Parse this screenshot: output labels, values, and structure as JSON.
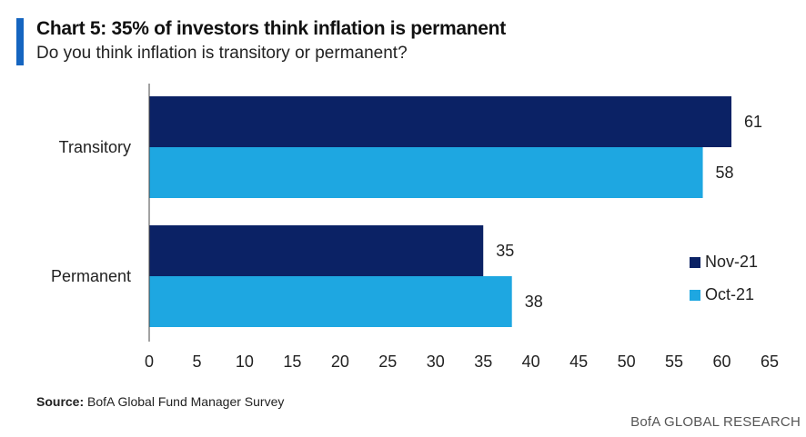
{
  "header": {
    "title": "Chart 5: 35% of investors think inflation is permanent",
    "subtitle": "Do you think inflation is transitory or permanent?"
  },
  "chart_data": {
    "type": "bar",
    "orientation": "horizontal",
    "categories": [
      "Transitory",
      "Permanent"
    ],
    "series": [
      {
        "name": "Nov-21",
        "values": [
          61,
          35
        ],
        "color": "#0b2265"
      },
      {
        "name": "Oct-21",
        "values": [
          58,
          38
        ],
        "color": "#1ea7e1"
      }
    ],
    "xlim": [
      0,
      65
    ],
    "xticks": [
      0,
      5,
      10,
      15,
      20,
      25,
      30,
      35,
      40,
      45,
      50,
      55,
      60,
      65
    ],
    "grid": false,
    "legend": "bottom-right",
    "data_labels": true
  },
  "footer": {
    "source_label": "Source:",
    "source_text": "BofA Global Fund Manager Survey",
    "brand": "BofA GLOBAL RESEARCH"
  }
}
